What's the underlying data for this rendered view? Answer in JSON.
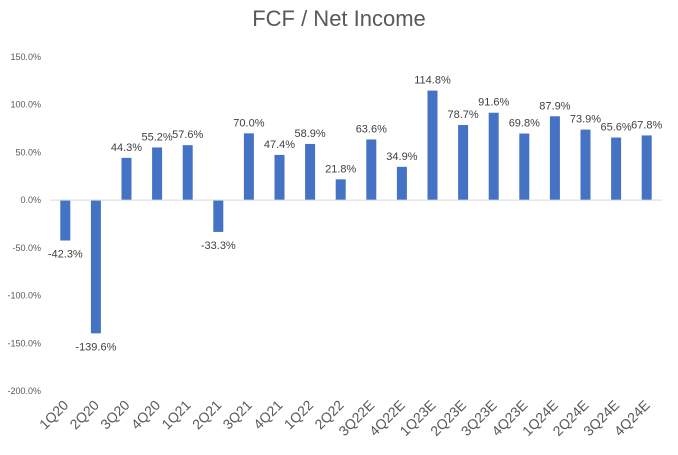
{
  "chart_data": {
    "type": "bar",
    "title": "FCF / Net Income",
    "categories": [
      "1Q20",
      "2Q20",
      "3Q20",
      "4Q20",
      "1Q21",
      "2Q21",
      "3Q21",
      "4Q21",
      "1Q22",
      "2Q22",
      "3Q22E",
      "4Q22E",
      "1Q23E",
      "2Q23E",
      "3Q23E",
      "4Q23E",
      "1Q24E",
      "2Q24E",
      "3Q24E",
      "4Q24E"
    ],
    "values": [
      -42.3,
      -139.6,
      44.3,
      55.2,
      57.6,
      -33.3,
      70.0,
      47.4,
      58.9,
      21.8,
      63.6,
      34.9,
      114.8,
      78.7,
      91.6,
      69.8,
      87.9,
      73.9,
      65.6,
      67.8
    ],
    "data_labels": [
      "-42.3%",
      "-139.6%",
      "44.3%",
      "55.2%",
      "57.6%",
      "-33.3%",
      "70.0%",
      "47.4%",
      "58.9%",
      "21.8%",
      "63.6%",
      "34.9%",
      "114.8%",
      "78.7%",
      "91.6%",
      "69.8%",
      "87.9%",
      "73.9%",
      "65.6%",
      "67.8%"
    ],
    "y_ticks": [
      "150.0%",
      "100.0%",
      "50.0%",
      "0.0%",
      "-50.0%",
      "-100.0%",
      "-150.0%",
      "-200.0%"
    ],
    "ylim": [
      -200,
      150
    ],
    "xlabel": "",
    "ylabel": "",
    "grid": false,
    "legend": "none",
    "colors": {
      "bar": "#4472C4",
      "axis": "#D9D9D9",
      "text": "#595959",
      "label": "#404040"
    }
  }
}
